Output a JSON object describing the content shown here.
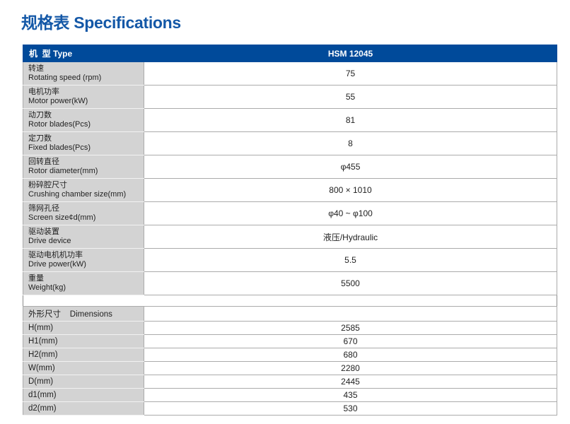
{
  "page": {
    "title": "规格表 Specifications"
  },
  "colors": {
    "header_bg": "#004a9a",
    "label_bg": "#d3d3d3",
    "title_blue": "#1458a7",
    "border": "#ababab",
    "text": "#222222"
  },
  "table": {
    "header": {
      "label": "机  型 Type",
      "value": "HSM 12045"
    },
    "rows": [
      {
        "zh": "转速",
        "en": "Rotating speed (rpm)",
        "value": "75"
      },
      {
        "zh": "电机功率",
        "en": "Motor power(kW)",
        "value": "55"
      },
      {
        "zh": "动刀数",
        "en": "Rotor blades(Pcs)",
        "value": "81"
      },
      {
        "zh": "定刀数",
        "en": "Fixed blades(Pcs)",
        "value": "8"
      },
      {
        "zh": "回转直径",
        "en": "Rotor diameter(mm)",
        "value": "φ455"
      },
      {
        "zh": "粉碎腔尺寸",
        "en": "Crushing chamber size(mm)",
        "value": "800 × 1010"
      },
      {
        "zh": "筛网孔径",
        "en": "Screen size¢d(mm)",
        "value": "φ40 ~ φ100"
      },
      {
        "zh": "驱动装置",
        "en": "Drive device",
        "value": "液压/Hydraulic"
      },
      {
        "zh": "驱动电机机功率",
        "en": "Drive power(kW)",
        "value": "5.5"
      },
      {
        "zh": "重量",
        "en": "Weight(kg)",
        "value": "5500"
      }
    ],
    "dimensions": {
      "header": "外形尺寸    Dimensions",
      "rows": [
        {
          "label": "H(mm)",
          "value": "2585"
        },
        {
          "label": "H1(mm)",
          "value": "670"
        },
        {
          "label": "H2(mm)",
          "value": "680"
        },
        {
          "label": "W(mm)",
          "value": "2280"
        },
        {
          "label": "D(mm)",
          "value": "2445"
        },
        {
          "label": "d1(mm)",
          "value": "435"
        },
        {
          "label": "d2(mm)",
          "value": "530"
        }
      ]
    }
  }
}
